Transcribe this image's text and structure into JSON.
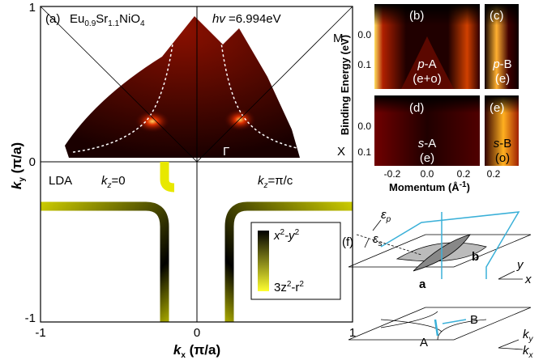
{
  "panel_a": {
    "label": "(a)",
    "formula": [
      "Eu",
      "0.9",
      "Sr",
      "1.1",
      "NiO",
      "4"
    ],
    "photon": [
      "hv",
      " =6.994eV"
    ],
    "points": {
      "M": "M",
      "gamma": "Γ",
      "X": "X"
    },
    "lda": "LDA",
    "kz0": [
      "k",
      "z",
      "=0"
    ],
    "kzpi": [
      "k",
      "z",
      "=π/c"
    ],
    "colorbar": {
      "top": [
        "x",
        "2",
        "-y",
        "2"
      ],
      "bottom": [
        "3z",
        "2",
        "-r",
        "2"
      ]
    },
    "y_ticks": [
      "1",
      "0",
      "-1"
    ],
    "x_ticks": [
      "-1",
      "0",
      "1"
    ],
    "y_label": [
      "k",
      "y",
      " (π/a)"
    ],
    "x_label": [
      "k",
      "x",
      " (π/a)"
    ]
  },
  "panels_bcde": {
    "b": {
      "label": "(b)",
      "name": [
        "p",
        "-A"
      ],
      "sub": "(e+o)"
    },
    "c": {
      "label": "(c)",
      "name": [
        "p",
        "-B"
      ],
      "sub": "(e)"
    },
    "d": {
      "label": "(d)",
      "name": [
        "s",
        "-A"
      ],
      "sub": "(e)"
    },
    "e": {
      "label": "(e)",
      "name": [
        "s",
        "-B"
      ],
      "sub": "(o)"
    },
    "y_ticks_top": [
      "0.0",
      "0.1"
    ],
    "y_ticks_bottom": [
      "0.0",
      "0.1"
    ],
    "x_ticks": [
      "-0.2",
      "0.0",
      "0.2"
    ],
    "x_tick_right": "0.2",
    "y_label": "Binding Energy (eV)",
    "x_label": [
      "Momentum (Å",
      "-1",
      ")"
    ]
  },
  "panel_f": {
    "label": "(f)",
    "eps_p": [
      "ε",
      "p"
    ],
    "eps_s": [
      "ε",
      "s"
    ],
    "b": "b",
    "a": "a",
    "y": "y",
    "x": "x",
    "B": "B",
    "A": "A",
    "ky": [
      "k",
      "y"
    ],
    "kx": [
      "k",
      "x"
    ]
  }
}
